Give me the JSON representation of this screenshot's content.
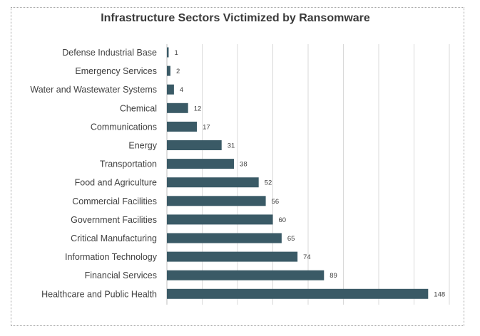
{
  "chart_data": {
    "type": "bar",
    "orientation": "horizontal",
    "title": "Infrastructure Sectors Victimized by Ransomware",
    "categories": [
      "Defense Industrial Base",
      "Emergency Services",
      "Water and Wastewater Systems",
      "Chemical",
      "Communications",
      "Energy",
      "Transportation",
      "Food and Agriculture",
      "Commercial Facilities",
      "Government Facilities",
      "Critical Manufacturing",
      "Information Technology",
      "Financial Services",
      "Healthcare and Public Health"
    ],
    "values": [
      1,
      2,
      4,
      12,
      17,
      31,
      38,
      52,
      56,
      60,
      65,
      74,
      89,
      148
    ],
    "xlim": [
      0,
      160
    ],
    "grid": true,
    "legend": "none",
    "bar_color": "#3a5a66"
  }
}
